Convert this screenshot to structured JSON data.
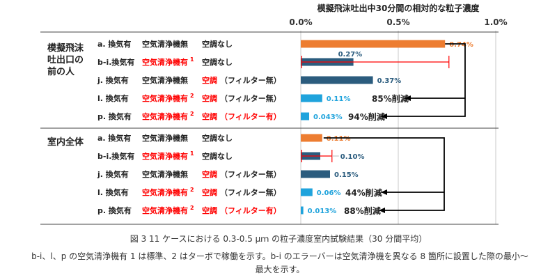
{
  "chart_data": {
    "type": "bar",
    "title": "模擬飛沫吐出中30分間の相対的な粒子濃度",
    "x_ticks": [
      "0.0%",
      "0.5%",
      "1.0%"
    ],
    "xlim": [
      0,
      1.0
    ],
    "grid": true,
    "colors": {
      "orange": "#ED7D31",
      "dark_blue": "#2B5C7E",
      "light_blue": "#1FA3DC",
      "red": "#FF0000",
      "arrow": "#000000"
    },
    "groups": [
      {
        "label": "模擬飛沫\n吐出口の\n前の人",
        "rows": [
          {
            "case": "a. 換気有",
            "purifier": "空気清浄機無",
            "purifier_sup": "",
            "purifier_red": false,
            "ac": "空調なし",
            "ac_red": false,
            "ac_filter": "",
            "filter_red": false,
            "value": 0.74,
            "label": "0.74%",
            "color": "orange"
          },
          {
            "case": "b-i.換気有",
            "purifier": "空気清浄機有",
            "purifier_sup": "1",
            "purifier_red": true,
            "ac": "空調なし",
            "ac_red": false,
            "ac_filter": "",
            "filter_red": false,
            "value": 0.27,
            "label": "0.27%",
            "color": "dark_blue",
            "err_min": 0.005,
            "err_max": 0.76
          },
          {
            "case": "j. 換気有",
            "purifier": "空気清浄機無",
            "purifier_sup": "",
            "purifier_red": false,
            "ac": "空調",
            "ac_red": true,
            "ac_filter": "（フィルター無）",
            "filter_red": false,
            "value": 0.37,
            "label": "0.37%",
            "color": "dark_blue"
          },
          {
            "case": "l. 換気有",
            "purifier": "空気清浄機有",
            "purifier_sup": "2",
            "purifier_red": true,
            "ac": "空調",
            "ac_red": true,
            "ac_filter": "（フィルター無）",
            "filter_red": false,
            "value": 0.11,
            "label": "0.11%",
            "color": "light_blue",
            "reduction": "85%削減"
          },
          {
            "case": "p. 換気有",
            "purifier": "空気清浄機有",
            "purifier_sup": "2",
            "purifier_red": true,
            "ac": "空調",
            "ac_red": true,
            "ac_filter": "（フィルター有）",
            "filter_red": true,
            "value": 0.043,
            "label": "0.043%",
            "color": "light_blue",
            "reduction": "94%削減"
          }
        ]
      },
      {
        "label": "室内全体",
        "rows": [
          {
            "case": "a. 換気有",
            "purifier": "空気清浄機無",
            "purifier_sup": "",
            "purifier_red": false,
            "ac": "空調なし",
            "ac_red": false,
            "ac_filter": "",
            "filter_red": false,
            "value": 0.11,
            "label": "0.11%",
            "color": "orange"
          },
          {
            "case": "b-i.換気有",
            "purifier": "空気清浄機有",
            "purifier_sup": "1",
            "purifier_red": true,
            "ac": "空調なし",
            "ac_red": false,
            "ac_filter": "",
            "filter_red": false,
            "value": 0.1,
            "label": "0.10%",
            "color": "dark_blue",
            "err_min": 0.005,
            "err_max": 0.16
          },
          {
            "case": "j. 換気有",
            "purifier": "空気清浄機無",
            "purifier_sup": "",
            "purifier_red": false,
            "ac": "空調",
            "ac_red": true,
            "ac_filter": "（フィルター無）",
            "filter_red": false,
            "value": 0.15,
            "label": "0.15%",
            "color": "dark_blue"
          },
          {
            "case": "l. 換気有",
            "purifier": "空気清浄機有",
            "purifier_sup": "2",
            "purifier_red": true,
            "ac": "空調",
            "ac_red": true,
            "ac_filter": "（フィルター無）",
            "filter_red": false,
            "value": 0.06,
            "label": "0.06%",
            "color": "light_blue",
            "reduction": "44%削減"
          },
          {
            "case": "p. 換気有",
            "purifier": "空気清浄機有",
            "purifier_sup": "2",
            "purifier_red": true,
            "ac": "空調",
            "ac_red": true,
            "ac_filter": "（フィルター有）",
            "filter_red": true,
            "value": 0.013,
            "label": "0.013%",
            "color": "light_blue",
            "reduction": "88%削減"
          }
        ]
      }
    ]
  },
  "caption": "図 3 11 ケースにおける 0.3-0.5 μｍ の粒子濃度室内試験結果（30 分間平均）",
  "note_line1": "b-i、l、p の空気清浄機有 1 は標準、2 はターボで稼働を示す。b-i のエラーバーは空気清浄機を異なる 8 箇所に設置した際の最小〜",
  "note_line2": "最大を示す。"
}
